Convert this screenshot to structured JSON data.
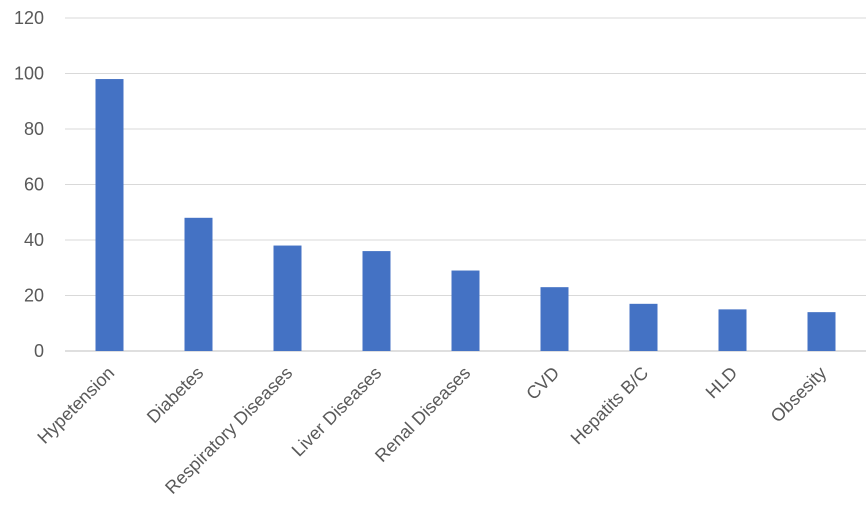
{
  "chart_data": {
    "type": "bar",
    "title": "",
    "xlabel": "",
    "ylabel": "",
    "ylim": [
      0,
      120
    ],
    "yticks": [
      0,
      20,
      40,
      60,
      80,
      100,
      120
    ],
    "grid": true,
    "bar_color": "#4472C4",
    "grid_color": "#D9D9D9",
    "categories": [
      "Hypetension",
      "Diabetes",
      "Respiratory Diseases",
      "Liver Diseases",
      "Renal Diseases",
      "CVD",
      "Hepatits B/C",
      "HLD",
      "Obsesity"
    ],
    "values": [
      98,
      48,
      38,
      36,
      29,
      23,
      17,
      15,
      14
    ]
  }
}
